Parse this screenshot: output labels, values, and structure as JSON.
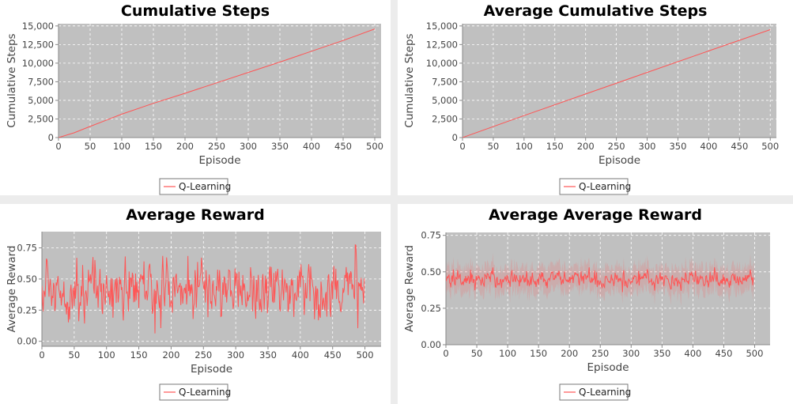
{
  "colors": {
    "plot_bg": "#c0c0c0",
    "series": "#ff5555",
    "grid": "#ffffff",
    "axis": "#888888"
  },
  "chart_data": [
    {
      "id": "cumulative-steps",
      "type": "line",
      "title": "Cumulative Steps",
      "xlabel": "Episode",
      "ylabel": "Cumulative Steps",
      "xlim": [
        0,
        510
      ],
      "ylim": [
        0,
        15300
      ],
      "xticks": [
        0,
        50,
        100,
        150,
        200,
        250,
        300,
        350,
        400,
        450,
        500
      ],
      "yticks": [
        0,
        2500,
        5000,
        7500,
        10000,
        12500,
        15000
      ],
      "ytick_labels": [
        "0",
        "2,500",
        "5,000",
        "7,500",
        "10,000",
        "12,500",
        "15,000"
      ],
      "grid": true,
      "legend": "bottom",
      "series": [
        {
          "name": "Q-Learning",
          "style": "linear",
          "x": [
            0,
            25,
            50,
            100,
            150,
            200,
            250,
            300,
            350,
            400,
            450,
            500
          ],
          "values": [
            0,
            650,
            1500,
            3150,
            4600,
            5950,
            7350,
            8750,
            10150,
            11600,
            13050,
            14600
          ]
        }
      ]
    },
    {
      "id": "average-cumulative-steps",
      "type": "line",
      "title": "Average Cumulative Steps",
      "xlabel": "Episode",
      "ylabel": "Cumulative Steps",
      "xlim": [
        0,
        510
      ],
      "ylim": [
        0,
        15300
      ],
      "xticks": [
        0,
        50,
        100,
        150,
        200,
        250,
        300,
        350,
        400,
        450,
        500
      ],
      "yticks": [
        0,
        2500,
        5000,
        7500,
        10000,
        12500,
        15000
      ],
      "ytick_labels": [
        "0",
        "2,500",
        "5,000",
        "7,500",
        "10,000",
        "12,500",
        "15,000"
      ],
      "grid": true,
      "legend": "bottom",
      "series": [
        {
          "name": "Q-Learning",
          "style": "linear",
          "x": [
            0,
            100,
            200,
            300,
            400,
            500
          ],
          "values": [
            0,
            2950,
            5850,
            8750,
            11650,
            14500
          ]
        }
      ]
    },
    {
      "id": "average-reward",
      "type": "line",
      "title": "Average Reward",
      "xlabel": "Episode",
      "ylabel": "Average Reward",
      "xlim": [
        0,
        525
      ],
      "ylim": [
        -0.04,
        0.88
      ],
      "xticks": [
        0,
        50,
        100,
        150,
        200,
        250,
        300,
        350,
        400,
        450,
        500
      ],
      "yticks": [
        0,
        0.25,
        0.5,
        0.75
      ],
      "ytick_labels": [
        "0.00",
        "0.25",
        "0.50",
        "0.75"
      ],
      "grid": true,
      "legend": "bottom",
      "series": [
        {
          "name": "Q-Learning",
          "style": "noisy",
          "n": 500,
          "mean": 0.42,
          "sd": 0.17,
          "min": -0.02,
          "max": 0.86
        }
      ]
    },
    {
      "id": "average-average-reward",
      "type": "line",
      "title": "Average Average Reward",
      "xlabel": "Episode",
      "ylabel": "Average Reward",
      "xlim": [
        0,
        525
      ],
      "ylim": [
        0,
        0.77
      ],
      "xticks": [
        0,
        50,
        100,
        150,
        200,
        250,
        300,
        350,
        400,
        450,
        500
      ],
      "yticks": [
        0,
        0.25,
        0.5,
        0.75
      ],
      "ytick_labels": [
        "0.00",
        "0.25",
        "0.50",
        "0.75"
      ],
      "grid": true,
      "legend": "bottom",
      "series": [
        {
          "name": "Q-Learning",
          "style": "noisy",
          "n": 500,
          "mean": 0.45,
          "sd": 0.045,
          "min": 0.35,
          "max": 0.6,
          "band": true
        }
      ]
    }
  ]
}
